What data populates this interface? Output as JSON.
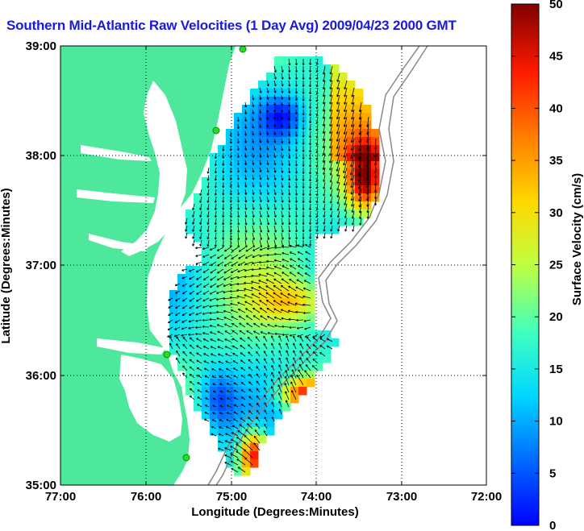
{
  "title": "Southern Mid-Atlantic Raw Velocities (1 Day Avg) 2009/04/23 2000 GMT",
  "axes": {
    "xlabel": "Longitude (Degrees:Minutes)",
    "ylabel": "Latitude (Degrees:Minutes)",
    "x_ticks": [
      "77:00",
      "76:00",
      "75:00",
      "74:00",
      "73:00",
      "72:00"
    ],
    "y_ticks": [
      "35:00",
      "36:00",
      "37:00",
      "38:00",
      "39:00"
    ]
  },
  "colorbar": {
    "label": "Surface Velocity (cm/s)",
    "ticks": [
      "0",
      "5",
      "10",
      "15",
      "20",
      "25",
      "30",
      "35",
      "40",
      "45",
      "50"
    ],
    "min": 0,
    "max": 50
  },
  "colors": {
    "land": "#4de89c",
    "water": "#ffffff",
    "title": "#1a1adc",
    "arrows": "#000000",
    "stations": "#22dd22"
  }
}
